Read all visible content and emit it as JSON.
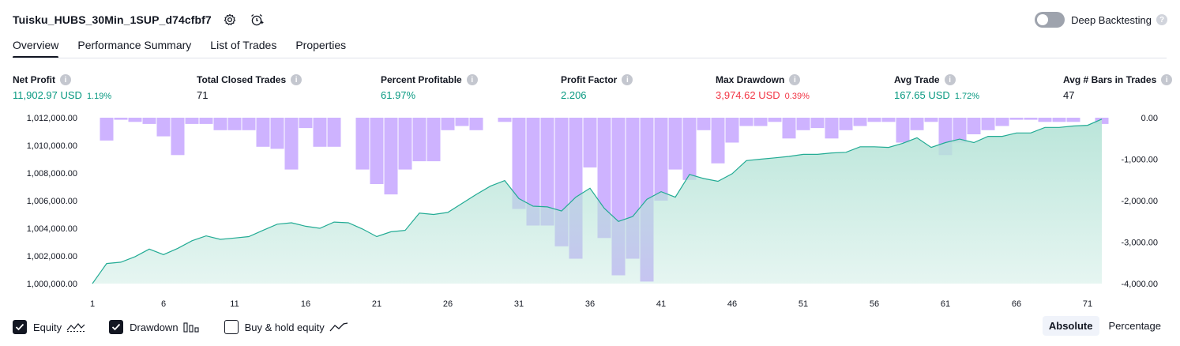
{
  "header": {
    "strategy_title": "Tuisku_HUBS_30Min_1SUP_d74cfbf7",
    "deep_backtesting_label": "Deep Backtesting",
    "deep_backtesting_enabled": false
  },
  "tabs": [
    {
      "label": "Overview",
      "active": true
    },
    {
      "label": "Performance Summary",
      "active": false
    },
    {
      "label": "List of Trades",
      "active": false
    },
    {
      "label": "Properties",
      "active": false
    }
  ],
  "metrics": [
    {
      "label": "Net Profit",
      "value": "11,902.97 USD",
      "pct": "1.19%",
      "color": "#089981"
    },
    {
      "label": "Total Closed Trades",
      "value": "71",
      "pct": "",
      "color": "#131722"
    },
    {
      "label": "Percent Profitable",
      "value": "61.97%",
      "pct": "",
      "color": "#089981"
    },
    {
      "label": "Profit Factor",
      "value": "2.206",
      "pct": "",
      "color": "#089981"
    },
    {
      "label": "Max Drawdown",
      "value": "3,974.62 USD",
      "pct": "0.39%",
      "color": "#f23645"
    },
    {
      "label": "Avg Trade",
      "value": "167.65 USD",
      "pct": "1.72%",
      "color": "#089981"
    },
    {
      "label": "Avg # Bars in Trades",
      "value": "47",
      "pct": "",
      "color": "#131722"
    }
  ],
  "chart_data": {
    "type": "line",
    "x": [
      1,
      2,
      3,
      4,
      5,
      6,
      7,
      8,
      9,
      10,
      11,
      12,
      13,
      14,
      15,
      16,
      17,
      18,
      19,
      20,
      21,
      22,
      23,
      24,
      25,
      26,
      27,
      28,
      29,
      30,
      31,
      32,
      33,
      34,
      35,
      36,
      37,
      38,
      39,
      40,
      41,
      42,
      43,
      44,
      45,
      46,
      47,
      48,
      49,
      50,
      51,
      52,
      53,
      54,
      55,
      56,
      57,
      58,
      59,
      60,
      61,
      62,
      63,
      64,
      65,
      66,
      67,
      68,
      69,
      70,
      71,
      72
    ],
    "x_tick_labels": [
      "1",
      "6",
      "11",
      "16",
      "21",
      "26",
      "31",
      "36",
      "41",
      "46",
      "51",
      "56",
      "61",
      "66",
      "71"
    ],
    "series": [
      {
        "name": "Equity",
        "axis": "left",
        "style": "area",
        "values": [
          1000000,
          1001450,
          1001550,
          1001950,
          1002500,
          1002100,
          1002550,
          1003100,
          1003450,
          1003200,
          1003300,
          1003400,
          1003850,
          1004300,
          1004400,
          1004150,
          1004000,
          1004450,
          1004400,
          1003950,
          1003400,
          1003750,
          1003850,
          1005100,
          1005000,
          1005150,
          1005800,
          1006450,
          1007050,
          1007450,
          1006150,
          1005600,
          1005550,
          1005250,
          1006250,
          1006900,
          1005450,
          1004500,
          1004850,
          1006100,
          1006650,
          1006250,
          1007900,
          1007600,
          1007400,
          1007950,
          1008900,
          1009000,
          1009100,
          1009200,
          1009350,
          1009350,
          1009450,
          1009500,
          1009900,
          1009900,
          1009850,
          1010150,
          1010550,
          1009850,
          1010200,
          1010450,
          1010200,
          1010650,
          1010650,
          1010900,
          1010900,
          1011300,
          1011300,
          1011400,
          1011450,
          1011900
        ]
      },
      {
        "name": "Drawdown",
        "axis": "right",
        "style": "bar",
        "values": [
          0,
          -550,
          -50,
          -100,
          -150,
          -450,
          -900,
          -150,
          -150,
          -300,
          -300,
          -300,
          -700,
          -750,
          -1250,
          -250,
          -700,
          -700,
          0,
          -1250,
          -1600,
          -1850,
          -1250,
          -1050,
          -1050,
          -300,
          -200,
          -300,
          0,
          -100,
          -2200,
          -2600,
          -2600,
          -3100,
          -3400,
          -1200,
          -2900,
          -3800,
          -3400,
          -3950,
          -2000,
          -1250,
          -1500,
          -300,
          -1100,
          -600,
          -200,
          -200,
          -100,
          -500,
          -300,
          -250,
          -500,
          -300,
          -200,
          -100,
          -100,
          -600,
          -300,
          -100,
          -900,
          -600,
          -400,
          -300,
          -200,
          -50,
          -50,
          -100,
          -100,
          -100,
          0,
          -150
        ]
      }
    ],
    "left_axis": {
      "ticks": [
        "1,012,000.00",
        "1,010,000.00",
        "1,008,000.00",
        "1,006,000.00",
        "1,004,000.00",
        "1,002,000.00",
        "1,000,000.00"
      ],
      "ylim": [
        1000000,
        1012000
      ]
    },
    "right_axis": {
      "ticks": [
        "0.00",
        "-1,000.00",
        "-2,000.00",
        "-3,000.00",
        "-4,000.00"
      ],
      "ylim": [
        -4000,
        0
      ]
    },
    "colors": {
      "equity_line": "#22ab94",
      "equity_fill": "#b7e4d8",
      "drawdown_bar": "#c6a6ff"
    }
  },
  "footer": {
    "checkboxes": [
      {
        "label": "Equity",
        "checked": true
      },
      {
        "label": "Drawdown",
        "checked": true
      },
      {
        "label": "Buy & hold equity",
        "checked": false
      }
    ],
    "view_modes": [
      {
        "label": "Absolute",
        "active": true
      },
      {
        "label": "Percentage",
        "active": false
      }
    ]
  }
}
